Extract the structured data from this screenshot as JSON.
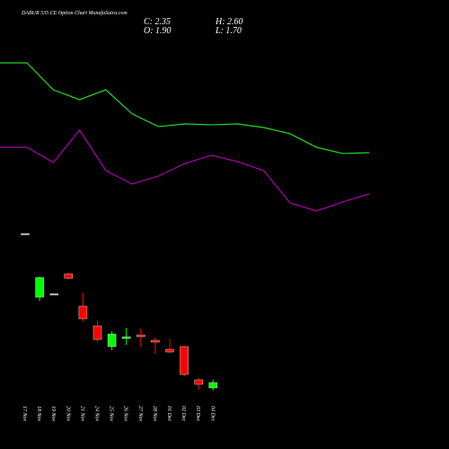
{
  "chart_data": {
    "type": "candlestick",
    "title": "DABUR 535 CE Option  Chart MunafaSutra.com",
    "ohlc_labels": {
      "close": "C: 2.35",
      "high": "H: 2.60",
      "open": "O: 1.90",
      "low": "L: 1.70"
    },
    "categories": [
      "17 Nov",
      "18 Nov",
      "19 Nov",
      "20 Nov",
      "21 Nov",
      "24 Nov",
      "25 Nov",
      "26 Nov",
      "27 Nov",
      "28 Nov",
      "01 Dec",
      "02 Dec",
      "03 Dec",
      "04 Dec"
    ],
    "open": [
      14.8,
      9.475,
      9.775,
      11.425,
      8.725,
      7.075,
      5.35,
      6.025,
      6.325,
      5.875,
      5.125,
      5.35,
      2.575,
      1.9
    ],
    "high": [
      14.8,
      11.2,
      9.775,
      11.5,
      9.85,
      7.525,
      6.625,
      6.925,
      6.85,
      6.1,
      6.025,
      5.425,
      2.725,
      2.6
    ],
    "low": [
      14.8,
      9.175,
      9.775,
      10.975,
      7.45,
      5.725,
      5.05,
      5.5,
      5.35,
      4.75,
      4.825,
      2.875,
      1.75,
      1.7
    ],
    "close": [
      14.8,
      11.125,
      9.775,
      11.05,
      7.675,
      5.95,
      6.4,
      6.175,
      6.175,
      5.725,
      4.9,
      3.025,
      2.2,
      2.35
    ],
    "up_color": "#00ff00",
    "down_color": "#ff0000",
    "flat_color": "#aaaaaa",
    "series": [
      {
        "color": "#22dd22",
        "values": [
          29.05,
          26.8,
          25.98,
          26.8,
          24.78,
          23.73,
          23.95,
          23.88,
          23.95,
          23.65,
          23.13,
          22.0,
          21.48,
          21.55
        ]
      },
      {
        "color": "#aa00aa",
        "values": [
          22.0,
          20.73,
          23.43,
          20.05,
          18.93,
          19.6,
          20.65,
          21.33,
          20.8,
          20.05,
          17.35,
          16.68,
          17.43,
          18.1
        ]
      }
    ],
    "ylim": [
      1.3,
      31.3
    ]
  }
}
